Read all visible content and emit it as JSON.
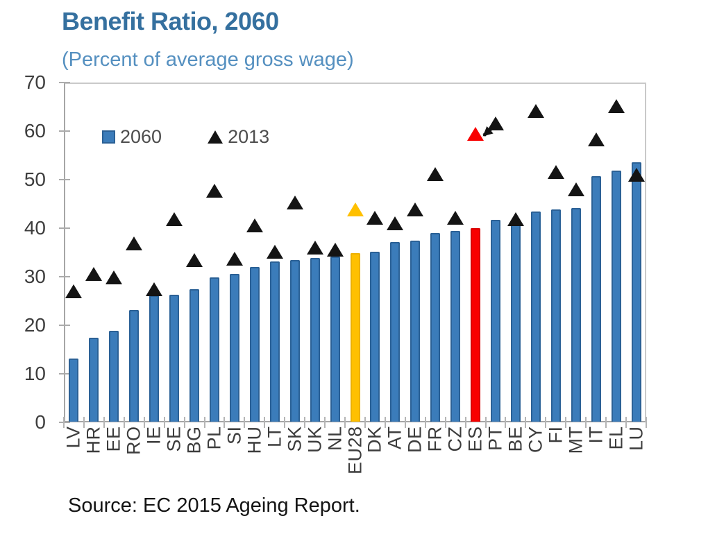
{
  "header": {
    "title": "Benefit Ratio, 2060",
    "subtitle": "(Percent of average gross wage)"
  },
  "legend": {
    "items": [
      {
        "label": "2060",
        "marker": "square",
        "color": "#3b7cba"
      },
      {
        "label": "2013",
        "marker": "triangle",
        "color": "#141414"
      }
    ]
  },
  "source_note": "Source: EC 2015 Ageing Report.",
  "chart_data": {
    "type": "bar",
    "title": "Benefit Ratio, 2060",
    "subtitle": "(Percent of average gross wage)",
    "xlabel": "",
    "ylabel": "",
    "ylim": [
      0,
      70
    ],
    "yticks": [
      0,
      10,
      20,
      30,
      40,
      50,
      60,
      70
    ],
    "grid": false,
    "legend_position": "top-left-inside",
    "categories": [
      "LV",
      "HR",
      "EE",
      "RO",
      "IE",
      "SE",
      "BG",
      "PL",
      "SI",
      "HU",
      "LT",
      "SK",
      "UK",
      "NL",
      "EU28",
      "DK",
      "AT",
      "DE",
      "FR",
      "CZ",
      "ES",
      "PT",
      "BE",
      "CY",
      "FI",
      "MT",
      "IT",
      "EL",
      "LU"
    ],
    "series": [
      {
        "name": "2060",
        "type": "bar",
        "color": "#3b7cba",
        "values": [
          13.1,
          17.5,
          18.9,
          23.2,
          26.2,
          26.3,
          27.5,
          29.9,
          30.6,
          32.0,
          33.2,
          33.4,
          33.9,
          34.1,
          34.9,
          35.1,
          37.2,
          37.5,
          39.0,
          39.4,
          40.0,
          41.7,
          41.4,
          43.5,
          43.8,
          44.1,
          50.7,
          51.8,
          53.6
        ]
      },
      {
        "name": "2013",
        "type": "scatter",
        "marker": "triangle",
        "color": "#141414",
        "values": [
          27.0,
          30.6,
          29.9,
          36.8,
          27.5,
          41.9,
          33.4,
          47.7,
          33.7,
          40.6,
          35.1,
          45.3,
          36.0,
          35.6,
          43.9,
          42.2,
          41.0,
          43.9,
          51.1,
          42.2,
          59.4,
          61.6,
          41.9,
          64.1,
          51.6,
          48.0,
          58.3,
          65.1,
          51.0
        ]
      }
    ],
    "highlights": {
      "EU28": {
        "fill": "#ffc000",
        "border": "#edb000"
      },
      "ES": {
        "fill": "#f80000",
        "border": "#d90000"
      }
    },
    "annotation": {
      "type": "arrow",
      "from": "PT",
      "to": "ES",
      "color": "#141414"
    }
  },
  "colors": {
    "bar_fill": "#3b7cba",
    "bar_border": "#2b6196",
    "triangle": "#141414",
    "eu28_highlight": "#ffc000",
    "es_highlight": "#f80000",
    "title_text": "#35709f",
    "subtitle_text": "#5590c0",
    "axis_text": "#3d3d3d",
    "axis_line": "#a6a6a6"
  }
}
